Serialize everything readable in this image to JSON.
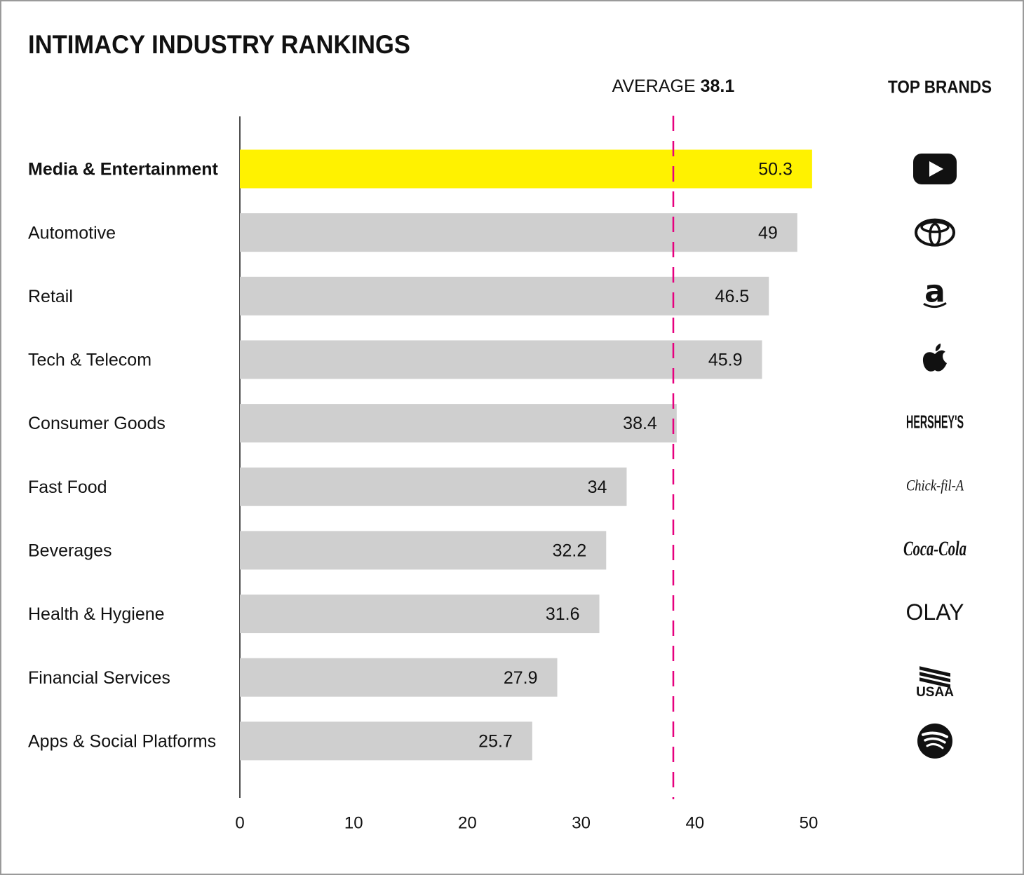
{
  "chart_data": {
    "type": "bar",
    "orientation": "horizontal",
    "title": "INTIMACY INDUSTRY RANKINGS",
    "categories": [
      "Media & Entertainment",
      "Automotive",
      "Retail",
      "Tech & Telecom",
      "Consumer Goods",
      "Fast Food",
      "Beverages",
      "Health & Hygiene",
      "Financial Services",
      "Apps & Social Platforms"
    ],
    "values": [
      50.3,
      49,
      46.5,
      45.9,
      38.4,
      34,
      32.2,
      31.6,
      27.9,
      25.7
    ],
    "color": "#cfcfcf",
    "colors": [
      "#fff200",
      "#cfcfcf",
      "#cfcfcf",
      "#cfcfcf",
      "#cfcfcf",
      "#cfcfcf",
      "#cfcfcf",
      "#cfcfcf",
      "#cfcfcf",
      "#cfcfcf"
    ],
    "xlim": [
      0,
      50
    ],
    "xticks": [
      0,
      10,
      20,
      30,
      40,
      50
    ],
    "grid": false,
    "average_label": "AVERAGE",
    "average": 38.1,
    "average_color": "#e6007e",
    "brands_title": "TOP BRANDS",
    "top_brands": [
      null,
      null,
      "a",
      null,
      "HERSHEY'S",
      "Chick-fil-A",
      "Coca-Cola",
      "OLAY",
      "USAA",
      null
    ]
  }
}
